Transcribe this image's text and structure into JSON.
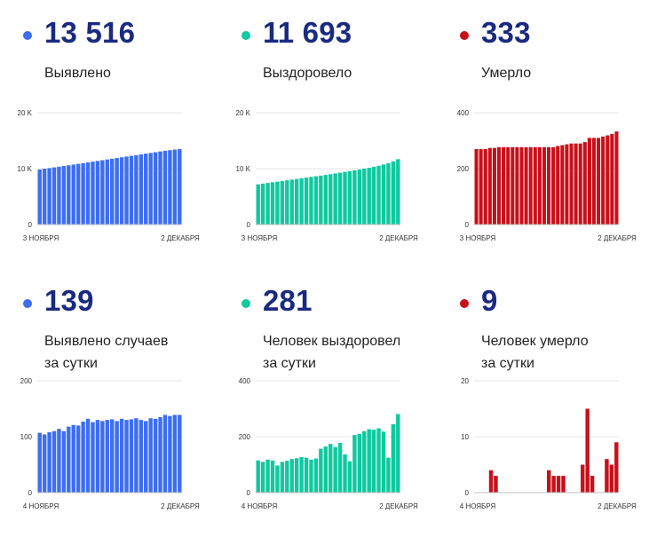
{
  "panels": [
    {
      "value": "13 516",
      "label_lines": [
        "Выявлено"
      ],
      "color": "#3d6ef0",
      "dot_icon": "bullet-dot-icon",
      "chart_data": {
        "type": "bar",
        "yticks": [
          "20 K",
          "10 K",
          "0"
        ],
        "ylim": [
          0,
          20000
        ],
        "x_start_label": "3 НОЯБРЯ",
        "x_end_label": "2 ДЕКАБРЯ",
        "values": [
          9850,
          9980,
          10100,
          10230,
          10350,
          10480,
          10600,
          10730,
          10860,
          10990,
          11120,
          11250,
          11380,
          11510,
          11640,
          11770,
          11900,
          12030,
          12160,
          12290,
          12420,
          12550,
          12680,
          12810,
          12940,
          13070,
          13190,
          13300,
          13410,
          13516
        ]
      }
    },
    {
      "value": "11 693",
      "label_lines": [
        "Выздоровело"
      ],
      "color": "#10c9a0",
      "dot_icon": "bullet-dot-icon",
      "chart_data": {
        "type": "bar",
        "yticks": [
          "20 K",
          "10 K",
          "0"
        ],
        "ylim": [
          0,
          20000
        ],
        "x_start_label": "3 НОЯБРЯ",
        "x_end_label": "2 ДЕКАБРЯ",
        "values": [
          7200,
          7320,
          7440,
          7560,
          7680,
          7800,
          7920,
          8040,
          8160,
          8280,
          8400,
          8520,
          8640,
          8760,
          8880,
          9000,
          9140,
          9280,
          9420,
          9560,
          9700,
          9850,
          10000,
          10150,
          10330,
          10520,
          10750,
          11000,
          11300,
          11693
        ]
      }
    },
    {
      "value": "333",
      "label_lines": [
        "Умерло"
      ],
      "color": "#c8101a",
      "dot_icon": "bullet-dot-icon",
      "chart_data": {
        "type": "bar",
        "yticks": [
          "400",
          "200",
          "0"
        ],
        "ylim": [
          0,
          400
        ],
        "x_start_label": "3 НОЯБРЯ",
        "x_end_label": "2 ДЕКАБРЯ",
        "values": [
          270,
          270,
          270,
          274,
          274,
          277,
          277,
          277,
          277,
          277,
          277,
          277,
          277,
          277,
          277,
          277,
          277,
          277,
          281,
          284,
          287,
          290,
          290,
          290,
          295,
          310,
          310,
          310,
          315,
          319,
          324,
          333
        ]
      }
    },
    {
      "value": "139",
      "label_lines": [
        "Выявлено случаев",
        "за сутки"
      ],
      "color": "#3d6ef0",
      "dot_icon": "bullet-dot-icon",
      "chart_data": {
        "type": "bar",
        "yticks": [
          "200",
          "100",
          "0"
        ],
        "ylim": [
          0,
          200
        ],
        "x_start_label": "4 НОЯБРЯ",
        "x_end_label": "2 ДЕКАБРЯ",
        "values": [
          107,
          104,
          108,
          110,
          114,
          110,
          118,
          121,
          120,
          127,
          132,
          126,
          130,
          128,
          130,
          131,
          128,
          132,
          130,
          131,
          133,
          130,
          128,
          133,
          132,
          135,
          139,
          137,
          139,
          139
        ]
      }
    },
    {
      "value": "281",
      "label_lines": [
        "Человек выздоровел",
        "за сутки"
      ],
      "color": "#10c9a0",
      "dot_icon": "bullet-dot-icon",
      "chart_data": {
        "type": "bar",
        "yticks": [
          "400",
          "200",
          "0"
        ],
        "ylim": [
          0,
          400
        ],
        "x_start_label": "4 НОЯБРЯ",
        "x_end_label": "2 ДЕКАБРЯ",
        "values": [
          115,
          110,
          118,
          115,
          97,
          110,
          114,
          120,
          123,
          127,
          125,
          118,
          122,
          157,
          165,
          174,
          163,
          178,
          137,
          112,
          206,
          210,
          220,
          227,
          225,
          230,
          218,
          125,
          245,
          281
        ]
      }
    },
    {
      "value": "9",
      "label_lines": [
        "Человек умерло",
        "за сутки"
      ],
      "color": "#c8101a",
      "dot_icon": "bullet-dot-icon",
      "chart_data": {
        "type": "bar",
        "yticks": [
          "20",
          "10",
          "0"
        ],
        "ylim": [
          0,
          20
        ],
        "x_start_label": "4 НОЯБРЯ",
        "x_end_label": "2 ДЕКАБРЯ",
        "values": [
          0,
          0,
          0,
          4,
          3,
          0,
          0,
          0,
          0,
          0,
          0,
          0,
          0,
          0,
          0,
          4,
          3,
          3,
          3,
          0,
          0,
          0,
          5,
          15,
          3,
          0,
          0,
          6,
          5,
          9
        ]
      }
    }
  ]
}
